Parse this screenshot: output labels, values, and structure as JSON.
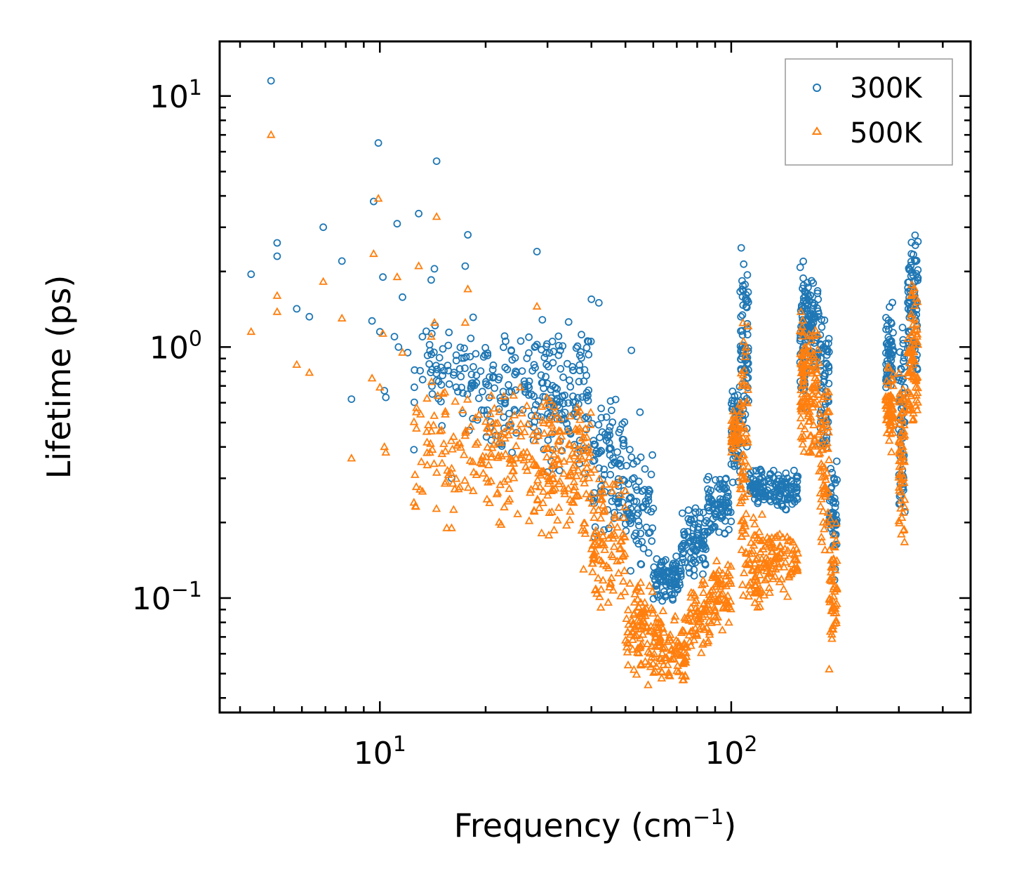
{
  "chart_data": {
    "type": "scatter",
    "title": "",
    "xscale": "log",
    "yscale": "log",
    "xlabel": "Frequency (cm",
    "xlabel_sup": "−1",
    "xlabel_end": ")",
    "ylabel": "Lifetime (ps)",
    "xlim": [
      3.5,
      480
    ],
    "ylim": [
      0.035,
      16.5
    ],
    "x_major_ticks": [
      {
        "value": 10,
        "base": "10",
        "exp": "1"
      },
      {
        "value": 100,
        "base": "10",
        "exp": "2"
      }
    ],
    "y_major_ticks": [
      {
        "value": 0.1,
        "base": "10",
        "exp": "−1"
      },
      {
        "value": 1,
        "base": "10",
        "exp": "0"
      },
      {
        "value": 10,
        "base": "10",
        "exp": "1"
      }
    ],
    "legend_position": "top-right",
    "series": [
      {
        "name": "300K",
        "color": "#1f77b4",
        "marker": "circle",
        "points": [
          [
            4.3,
            1.95
          ],
          [
            4.9,
            11.5
          ],
          [
            5.1,
            2.6
          ],
          [
            5.1,
            2.3
          ],
          [
            5.8,
            1.42
          ],
          [
            6.3,
            1.32
          ],
          [
            6.9,
            3.0
          ],
          [
            7.8,
            2.2
          ],
          [
            8.3,
            0.62
          ],
          [
            9.5,
            1.27
          ],
          [
            9.6,
            3.8
          ],
          [
            9.9,
            6.5
          ],
          [
            10.0,
            1.15
          ],
          [
            10.2,
            1.9
          ],
          [
            10.3,
            0.67
          ],
          [
            10.4,
            0.63
          ],
          [
            11.0,
            1.1
          ],
          [
            11.2,
            3.1
          ],
          [
            11.3,
            1.0
          ],
          [
            11.6,
            1.58
          ],
          [
            12.0,
            0.95
          ],
          [
            12.5,
            0.39
          ],
          [
            12.9,
            3.4
          ],
          [
            14.0,
            1.85
          ],
          [
            14.1,
            0.65
          ],
          [
            14.3,
            2.05
          ],
          [
            14.5,
            5.5
          ],
          [
            16.0,
            0.3
          ],
          [
            17.5,
            2.1
          ],
          [
            17.8,
            2.8
          ],
          [
            28.0,
            2.4
          ],
          [
            40.0,
            1.55
          ],
          [
            42.0,
            1.5
          ],
          [
            52.0,
            0.97
          ],
          [
            55.0,
            0.55
          ]
        ],
        "bands": [
          [
            12.5,
            20,
            0.42,
            1.5,
            80
          ],
          [
            20,
            30,
            0.35,
            1.35,
            110
          ],
          [
            30,
            40,
            0.3,
            1.3,
            110
          ],
          [
            40,
            50,
            0.16,
            0.7,
            90
          ],
          [
            50,
            60,
            0.12,
            0.45,
            70
          ],
          [
            60,
            72,
            0.095,
            0.15,
            90
          ],
          [
            72,
            85,
            0.12,
            0.24,
            80
          ],
          [
            85,
            100,
            0.17,
            0.32,
            80
          ],
          [
            100,
            106,
            0.28,
            0.75,
            60
          ],
          [
            106,
            112,
            0.32,
            2.6,
            70
          ],
          [
            112,
            125,
            0.23,
            0.33,
            60
          ],
          [
            125,
            155,
            0.22,
            0.33,
            90
          ],
          [
            157,
            162,
            0.5,
            2.5,
            50
          ],
          [
            162,
            178,
            0.75,
            1.95,
            80
          ],
          [
            178,
            190,
            0.35,
            1.4,
            60
          ],
          [
            190,
            200,
            0.11,
            0.4,
            50
          ],
          [
            275,
            290,
            0.6,
            1.6,
            60
          ],
          [
            300,
            312,
            0.2,
            1.3,
            60
          ],
          [
            318,
            340,
            0.7,
            3.2,
            80
          ]
        ]
      },
      {
        "name": "500K",
        "color": "#ff7f0e",
        "marker": "triangle",
        "points": [
          [
            4.3,
            1.15
          ],
          [
            4.9,
            7.0
          ],
          [
            5.1,
            1.6
          ],
          [
            5.1,
            1.38
          ],
          [
            5.8,
            0.85
          ],
          [
            6.3,
            0.79
          ],
          [
            6.9,
            1.82
          ],
          [
            7.8,
            1.3
          ],
          [
            8.3,
            0.36
          ],
          [
            9.5,
            0.75
          ],
          [
            9.6,
            2.35
          ],
          [
            9.9,
            3.9
          ],
          [
            10.0,
            0.69
          ],
          [
            10.2,
            1.13
          ],
          [
            10.3,
            0.4
          ],
          [
            10.4,
            0.38
          ],
          [
            11.2,
            1.9
          ],
          [
            11.6,
            0.95
          ],
          [
            12.5,
            0.24
          ],
          [
            12.9,
            2.1
          ],
          [
            14.0,
            1.1
          ],
          [
            14.1,
            0.39
          ],
          [
            14.3,
            1.25
          ],
          [
            14.5,
            3.3
          ],
          [
            15.5,
            0.19
          ],
          [
            16.0,
            0.19
          ],
          [
            17.5,
            1.25
          ],
          [
            17.8,
            1.7
          ],
          [
            28.0,
            1.45
          ],
          [
            38.0,
            0.13
          ],
          [
            58.0,
            0.045
          ],
          [
            190,
            0.052
          ]
        ],
        "bands": [
          [
            12.5,
            20,
            0.2,
            0.8,
            80
          ],
          [
            20,
            30,
            0.17,
            0.75,
            120
          ],
          [
            30,
            40,
            0.15,
            0.75,
            120
          ],
          [
            40,
            50,
            0.08,
            0.35,
            100
          ],
          [
            50,
            60,
            0.047,
            0.12,
            90
          ],
          [
            60,
            75,
            0.045,
            0.09,
            100
          ],
          [
            75,
            88,
            0.06,
            0.12,
            70
          ],
          [
            88,
            100,
            0.07,
            0.15,
            60
          ],
          [
            100,
            106,
            0.35,
            0.65,
            40
          ],
          [
            106,
            112,
            0.08,
            1.6,
            70
          ],
          [
            112,
            125,
            0.08,
            0.22,
            60
          ],
          [
            125,
            155,
            0.1,
            0.2,
            80
          ],
          [
            157,
            162,
            0.3,
            1.6,
            50
          ],
          [
            162,
            178,
            0.3,
            1.3,
            80
          ],
          [
            178,
            190,
            0.15,
            0.75,
            60
          ],
          [
            190,
            200,
            0.06,
            0.22,
            50
          ],
          [
            275,
            290,
            0.35,
            0.9,
            60
          ],
          [
            300,
            312,
            0.16,
            0.8,
            60
          ],
          [
            318,
            340,
            0.4,
            2.1,
            80
          ]
        ]
      }
    ]
  }
}
